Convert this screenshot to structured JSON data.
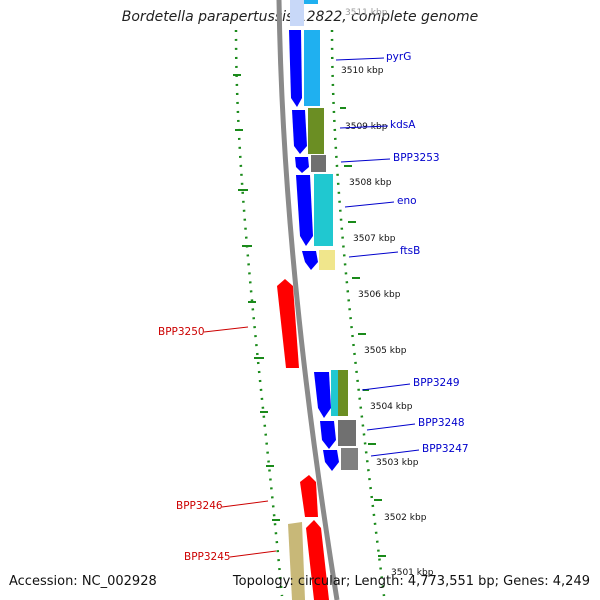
{
  "title": "Bordetella parapertussis 12822, complete genome",
  "footer": {
    "accession": "Accession: NC_002928",
    "topology": "Topology: circular; Length: 4,773,551 bp; Genes: 4,249"
  },
  "colors": {
    "forward_cds": "#ff0000",
    "reverse_cds": "#0000ff",
    "gene_label_forward": "#cc0000",
    "gene_label_reverse": "#0000cc",
    "backbone": "#8a8a8a",
    "gc_skew": "#228b22"
  },
  "scale_labels": [
    "3511 kbp",
    "3510 kbp",
    "3509 kbp",
    "3508 kbp",
    "3507 kbp",
    "3506 kbp",
    "3505 kbp",
    "3504 kbp",
    "3503 kbp",
    "3502 kbp",
    "3501 kbp"
  ],
  "gene_labels": {
    "pyrG": "pyrG",
    "kdsA": "kdsA",
    "BPP3253": "BPP3253",
    "eno": "eno",
    "ftsB": "ftsB",
    "BPP3250": "BPP3250",
    "BPP3249": "BPP3249",
    "BPP3248": "BPP3248",
    "BPP3247": "BPP3247",
    "BPP3246": "BPP3246",
    "BPP3245": "BPP3245"
  }
}
